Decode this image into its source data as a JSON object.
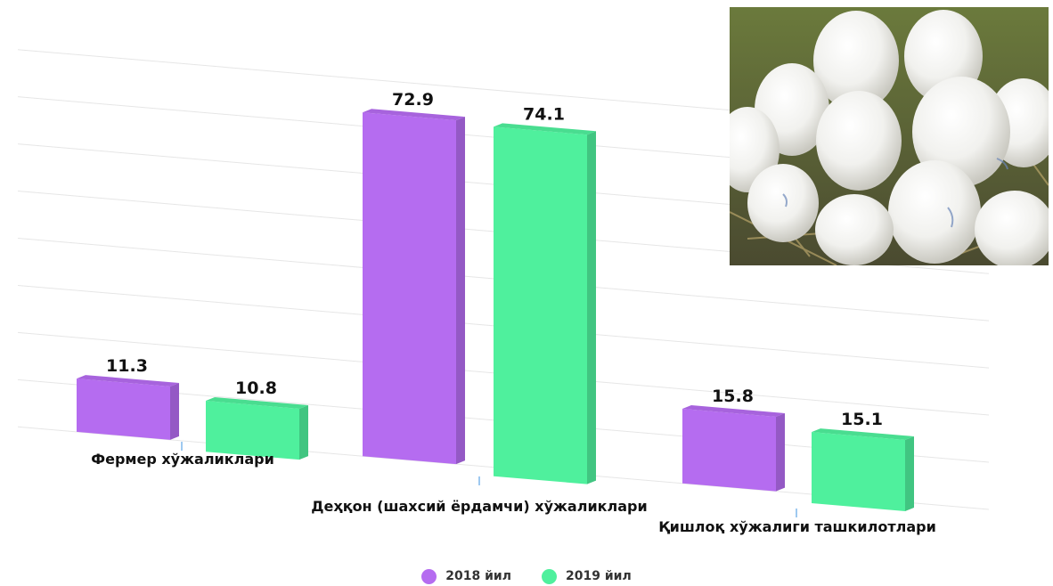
{
  "chart_data": {
    "type": "bar",
    "categories": [
      "Фермер хўжаликлари",
      "Деҳқон (шахсий ёрдамчи) хўжаликлари",
      "Қишлоқ хўжалиги ташкилотлари"
    ],
    "series": [
      {
        "name": "2018 йил",
        "values": [
          11.3,
          72.9,
          15.8
        ],
        "color": "#b56cf0"
      },
      {
        "name": "2019 йил",
        "values": [
          10.8,
          74.1,
          15.1
        ],
        "color": "#4ff09d"
      }
    ],
    "value_labels": [
      [
        "11.3",
        "72.9",
        "15.8"
      ],
      [
        "10.8",
        "74.1",
        "15.1"
      ]
    ],
    "ylim": [
      0,
      80
    ],
    "grid": true,
    "legend": "bottom",
    "title": "",
    "xlabel": "",
    "ylabel": ""
  },
  "photo": {
    "subject": "white eggs in a straw nest"
  },
  "colors": {
    "series_2018": "#b56cf0",
    "series_2019": "#4ff09d",
    "grid": "#e6e6e6"
  }
}
